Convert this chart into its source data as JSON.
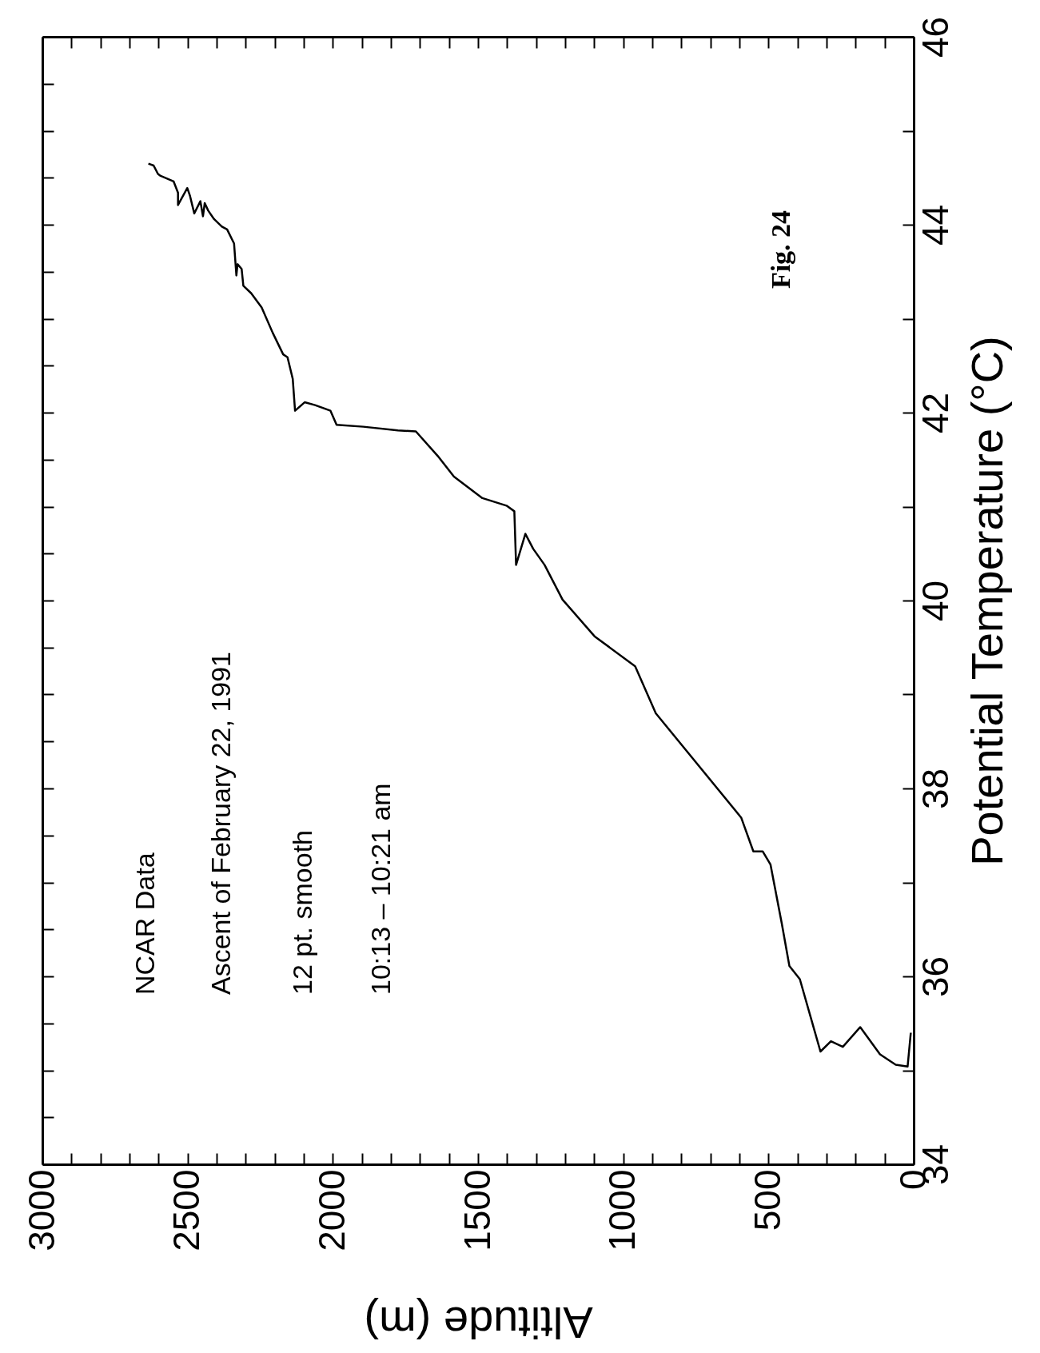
{
  "chart_data": {
    "type": "line",
    "xlabel": "Altitude (m)",
    "ylabel": "Potential Temperature (°C)",
    "xlim": [
      3000,
      0
    ],
    "ylim": [
      34,
      46
    ],
    "xticks": [
      3000,
      {
        "value": 2900,
        "label": null
      },
      {
        "value": 2800,
        "label": null
      },
      {
        "value": 2700,
        "label": null
      },
      {
        "value": 2600,
        "label": null
      },
      2500,
      {
        "value": 2400,
        "label": null
      },
      {
        "value": 2300,
        "label": null
      },
      {
        "value": 2200,
        "label": null
      },
      {
        "value": 2100,
        "label": null
      },
      2000,
      {
        "value": 1900,
        "label": null
      },
      {
        "value": 1800,
        "label": null
      },
      {
        "value": 1700,
        "label": null
      },
      {
        "value": 1600,
        "label": null
      },
      1500,
      {
        "value": 1400,
        "label": null
      },
      {
        "value": 1300,
        "label": null
      },
      {
        "value": 1200,
        "label": null
      },
      {
        "value": 1100,
        "label": null
      },
      1000,
      {
        "value": 900,
        "label": null
      },
      {
        "value": 800,
        "label": null
      },
      {
        "value": 700,
        "label": null
      },
      {
        "value": 600,
        "label": null
      },
      500,
      {
        "value": 400,
        "label": null
      },
      {
        "value": 300,
        "label": null
      },
      {
        "value": 200,
        "label": null
      },
      {
        "value": 100,
        "label": null
      },
      0
    ],
    "yticks": [
      34,
      {
        "value": 34.5,
        "label": null
      },
      {
        "value": 35,
        "label": null
      },
      {
        "value": 35.5,
        "label": null
      },
      36,
      {
        "value": 36.5,
        "label": null
      },
      {
        "value": 37,
        "label": null
      },
      {
        "value": 37.5,
        "label": null
      },
      38,
      {
        "value": 38.5,
        "label": null
      },
      {
        "value": 39,
        "label": null
      },
      {
        "value": 39.5,
        "label": null
      },
      40,
      {
        "value": 40.5,
        "label": null
      },
      {
        "value": 41,
        "label": null
      },
      {
        "value": 41.5,
        "label": null
      },
      42,
      {
        "value": 42.5,
        "label": null
      },
      {
        "value": 43,
        "label": null
      },
      {
        "value": 43.5,
        "label": null
      },
      44,
      {
        "value": 44.5,
        "label": null
      },
      {
        "value": 45,
        "label": null
      },
      {
        "value": 45.5,
        "label": null
      },
      46
    ],
    "grid": false,
    "marker": "none",
    "line_style": "solid",
    "annotations": [
      "NCAR Data",
      "Ascent of February 22, 1991",
      "12 pt. smooth",
      "10:13 – 10:21 am",
      "Fig. 24"
    ],
    "series": [
      {
        "color": "#000000",
        "x": [
          10,
          21,
          62,
          116,
          184,
          244,
          285,
          321,
          392,
          428,
          454,
          493,
          520,
          552,
          594,
          888,
          959,
          1099,
          1209,
          1271,
          1310,
          1337,
          1369,
          1375,
          1402,
          1485,
          1583,
          1639,
          1714,
          1776,
          1895,
          1987,
          2008,
          2061,
          2097,
          2130,
          2138,
          2156,
          2171,
          2207,
          2245,
          2281,
          2308,
          2314,
          2328,
          2332,
          2340,
          2364,
          2382,
          2409,
          2429,
          2441,
          2447,
          2456,
          2477,
          2492,
          2501,
          2533,
          2533,
          2548,
          2593,
          2602,
          2617,
          2635
        ],
        "values": [
          35.4,
          35.04,
          35.06,
          35.17,
          35.46,
          35.25,
          35.31,
          35.2,
          35.97,
          36.11,
          36.56,
          37.19,
          37.33,
          37.33,
          37.69,
          38.8,
          39.3,
          39.62,
          40.01,
          40.38,
          40.55,
          40.71,
          40.38,
          40.95,
          41.01,
          41.09,
          41.32,
          41.54,
          41.8,
          41.81,
          41.85,
          41.87,
          42.02,
          42.08,
          42.11,
          42.02,
          42.36,
          42.59,
          42.62,
          42.85,
          43.12,
          43.27,
          43.35,
          43.53,
          43.58,
          43.46,
          43.8,
          43.95,
          43.98,
          44.06,
          44.15,
          44.23,
          44.09,
          44.25,
          44.12,
          44.31,
          44.39,
          44.21,
          44.34,
          44.46,
          44.52,
          44.54,
          44.63,
          44.65
        ]
      }
    ]
  }
}
